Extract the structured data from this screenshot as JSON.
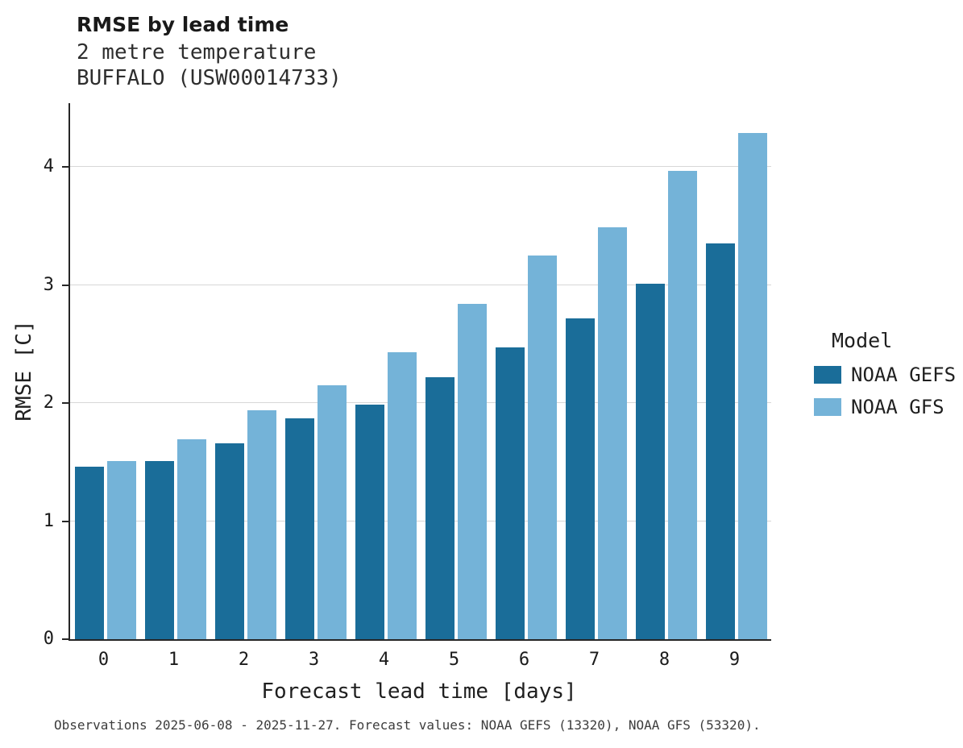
{
  "title": "RMSE by lead time",
  "subtitle_line1": "2 metre temperature",
  "subtitle_line2": "BUFFALO (USW00014733)",
  "caption": "Observations 2025-06-08 - 2025-11-27. Forecast values: NOAA GEFS (13320), NOAA GFS (53320).",
  "chart_data": {
    "type": "bar",
    "title": "RMSE by lead time",
    "subtitle": [
      "2 metre temperature",
      "BUFFALO (USW00014733)"
    ],
    "xlabel": "Forecast lead time [days]",
    "ylabel": "RMSE [C]",
    "categories": [
      "0",
      "1",
      "2",
      "3",
      "4",
      "5",
      "6",
      "7",
      "8",
      "9"
    ],
    "series": [
      {
        "name": "NOAA GEFS",
        "color": "#1a6d99",
        "values": [
          1.46,
          1.51,
          1.66,
          1.87,
          1.99,
          2.22,
          2.47,
          2.72,
          3.01,
          3.35
        ]
      },
      {
        "name": "NOAA GFS",
        "color": "#74b3d8",
        "values": [
          1.51,
          1.69,
          1.94,
          2.15,
          2.43,
          2.84,
          3.25,
          3.49,
          3.97,
          4.29
        ]
      }
    ],
    "ylim": [
      0,
      4.54
    ],
    "yticks": [
      0,
      1,
      2,
      3,
      4
    ],
    "legend_title": "Model",
    "legend_position": "right",
    "grid": "horizontal",
    "background": "#ffffff",
    "axis_color": "#262626",
    "gridline_color": "#d7d7d7"
  }
}
